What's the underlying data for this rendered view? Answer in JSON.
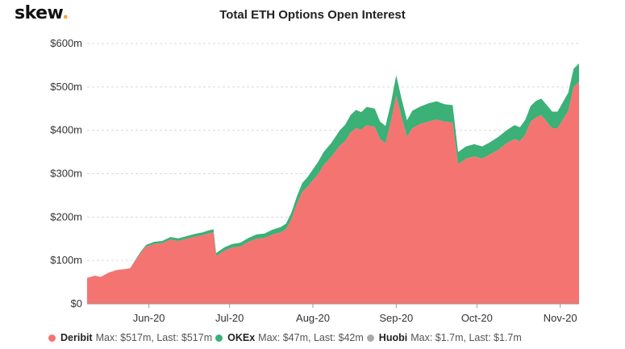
{
  "brand": {
    "name": "skew",
    "dot": "."
  },
  "chart_data": {
    "type": "area",
    "stacked": true,
    "title": "Total ETH Options Open Interest",
    "xlabel": "",
    "ylabel": "",
    "y_ticks": [
      {
        "value": 0,
        "label": "$0"
      },
      {
        "value": 100,
        "label": "$100m"
      },
      {
        "value": 200,
        "label": "$200m"
      },
      {
        "value": 300,
        "label": "$300m"
      },
      {
        "value": 400,
        "label": "$400m"
      },
      {
        "value": 500,
        "label": "$500m"
      },
      {
        "value": 600,
        "label": "$600m"
      }
    ],
    "ylim": [
      0,
      600
    ],
    "x_ticks": [
      {
        "date": "2020-06-01",
        "label": "Jun-20"
      },
      {
        "date": "2020-07-01",
        "label": "Jul-20"
      },
      {
        "date": "2020-08-01",
        "label": "Aug-20"
      },
      {
        "date": "2020-09-01",
        "label": "Sep-20"
      },
      {
        "date": "2020-10-01",
        "label": "Oct-20"
      },
      {
        "date": "2020-11-01",
        "label": "Nov-20"
      }
    ],
    "xlim": [
      "2020-05-09",
      "2020-11-08"
    ],
    "grid": "horizontal dashed",
    "legend_position": "bottom",
    "series": [
      {
        "name": "Deribit",
        "color": "#f47471",
        "stats": "Max: $517m, Last: $517m",
        "points": [
          [
            "2020-05-09",
            60
          ],
          [
            "2020-05-12",
            65
          ],
          [
            "2020-05-14",
            62
          ],
          [
            "2020-05-17",
            72
          ],
          [
            "2020-05-20",
            78
          ],
          [
            "2020-05-23",
            80
          ],
          [
            "2020-05-25",
            82
          ],
          [
            "2020-05-27",
            100
          ],
          [
            "2020-05-29",
            118
          ],
          [
            "2020-05-31",
            132
          ],
          [
            "2020-06-03",
            138
          ],
          [
            "2020-06-06",
            140
          ],
          [
            "2020-06-09",
            148
          ],
          [
            "2020-06-12",
            145
          ],
          [
            "2020-06-15",
            150
          ],
          [
            "2020-06-18",
            155
          ],
          [
            "2020-06-21",
            158
          ],
          [
            "2020-06-23",
            162
          ],
          [
            "2020-06-25",
            165
          ],
          [
            "2020-06-26",
            110
          ],
          [
            "2020-06-29",
            122
          ],
          [
            "2020-07-02",
            130
          ],
          [
            "2020-07-05",
            132
          ],
          [
            "2020-07-08",
            143
          ],
          [
            "2020-07-11",
            150
          ],
          [
            "2020-07-14",
            152
          ],
          [
            "2020-07-17",
            160
          ],
          [
            "2020-07-20",
            165
          ],
          [
            "2020-07-22",
            172
          ],
          [
            "2020-07-24",
            195
          ],
          [
            "2020-07-26",
            230
          ],
          [
            "2020-07-28",
            258
          ],
          [
            "2020-07-30",
            270
          ],
          [
            "2020-08-01",
            285
          ],
          [
            "2020-08-03",
            300
          ],
          [
            "2020-08-05",
            320
          ],
          [
            "2020-08-08",
            340
          ],
          [
            "2020-08-11",
            365
          ],
          [
            "2020-08-13",
            375
          ],
          [
            "2020-08-15",
            395
          ],
          [
            "2020-08-17",
            405
          ],
          [
            "2020-08-19",
            402
          ],
          [
            "2020-08-21",
            412
          ],
          [
            "2020-08-24",
            408
          ],
          [
            "2020-08-26",
            380
          ],
          [
            "2020-08-28",
            370
          ],
          [
            "2020-08-30",
            420
          ],
          [
            "2020-09-01",
            480
          ],
          [
            "2020-09-03",
            430
          ],
          [
            "2020-09-05",
            385
          ],
          [
            "2020-09-07",
            405
          ],
          [
            "2020-09-10",
            415
          ],
          [
            "2020-09-13",
            420
          ],
          [
            "2020-09-16",
            425
          ],
          [
            "2020-09-19",
            420
          ],
          [
            "2020-09-22",
            418
          ],
          [
            "2020-09-24",
            322
          ],
          [
            "2020-09-27",
            335
          ],
          [
            "2020-09-30",
            340
          ],
          [
            "2020-10-03",
            335
          ],
          [
            "2020-10-06",
            345
          ],
          [
            "2020-10-09",
            355
          ],
          [
            "2020-10-12",
            370
          ],
          [
            "2020-10-15",
            380
          ],
          [
            "2020-10-17",
            375
          ],
          [
            "2020-10-19",
            390
          ],
          [
            "2020-10-21",
            420
          ],
          [
            "2020-10-23",
            430
          ],
          [
            "2020-10-25",
            435
          ],
          [
            "2020-10-27",
            420
          ],
          [
            "2020-10-29",
            405
          ],
          [
            "2020-10-31",
            405
          ],
          [
            "2020-11-02",
            425
          ],
          [
            "2020-11-04",
            445
          ],
          [
            "2020-11-06",
            500
          ],
          [
            "2020-11-08",
            512
          ]
        ]
      },
      {
        "name": "OKEx",
        "color": "#3bb077",
        "stats": "Max: $47m, Last: $42m",
        "points": [
          [
            "2020-05-09",
            0
          ],
          [
            "2020-05-12",
            0
          ],
          [
            "2020-05-14",
            0
          ],
          [
            "2020-05-17",
            0
          ],
          [
            "2020-05-20",
            0
          ],
          [
            "2020-05-23",
            0
          ],
          [
            "2020-05-25",
            0
          ],
          [
            "2020-05-27",
            2
          ],
          [
            "2020-05-29",
            3
          ],
          [
            "2020-05-31",
            4
          ],
          [
            "2020-06-03",
            5
          ],
          [
            "2020-06-06",
            5
          ],
          [
            "2020-06-09",
            6
          ],
          [
            "2020-06-12",
            6
          ],
          [
            "2020-06-15",
            6
          ],
          [
            "2020-06-18",
            6
          ],
          [
            "2020-06-21",
            7
          ],
          [
            "2020-06-23",
            7
          ],
          [
            "2020-06-25",
            7
          ],
          [
            "2020-06-26",
            7
          ],
          [
            "2020-06-29",
            8
          ],
          [
            "2020-07-02",
            8
          ],
          [
            "2020-07-05",
            9
          ],
          [
            "2020-07-08",
            9
          ],
          [
            "2020-07-11",
            10
          ],
          [
            "2020-07-14",
            10
          ],
          [
            "2020-07-17",
            11
          ],
          [
            "2020-07-20",
            12
          ],
          [
            "2020-07-22",
            13
          ],
          [
            "2020-07-24",
            15
          ],
          [
            "2020-07-26",
            17
          ],
          [
            "2020-07-28",
            20
          ],
          [
            "2020-07-30",
            22
          ],
          [
            "2020-08-01",
            25
          ],
          [
            "2020-08-03",
            28
          ],
          [
            "2020-08-05",
            30
          ],
          [
            "2020-08-08",
            32
          ],
          [
            "2020-08-11",
            35
          ],
          [
            "2020-08-13",
            38
          ],
          [
            "2020-08-15",
            40
          ],
          [
            "2020-08-17",
            42
          ],
          [
            "2020-08-19",
            40
          ],
          [
            "2020-08-21",
            42
          ],
          [
            "2020-08-24",
            42
          ],
          [
            "2020-08-26",
            40
          ],
          [
            "2020-08-28",
            40
          ],
          [
            "2020-08-30",
            42
          ],
          [
            "2020-09-01",
            47
          ],
          [
            "2020-09-03",
            42
          ],
          [
            "2020-09-05",
            38
          ],
          [
            "2020-09-07",
            40
          ],
          [
            "2020-09-10",
            40
          ],
          [
            "2020-09-13",
            42
          ],
          [
            "2020-09-16",
            42
          ],
          [
            "2020-09-19",
            40
          ],
          [
            "2020-09-22",
            40
          ],
          [
            "2020-09-24",
            28
          ],
          [
            "2020-09-27",
            28
          ],
          [
            "2020-09-30",
            28
          ],
          [
            "2020-10-03",
            28
          ],
          [
            "2020-10-06",
            28
          ],
          [
            "2020-10-09",
            30
          ],
          [
            "2020-10-12",
            30
          ],
          [
            "2020-10-15",
            32
          ],
          [
            "2020-10-17",
            32
          ],
          [
            "2020-10-19",
            34
          ],
          [
            "2020-10-21",
            36
          ],
          [
            "2020-10-23",
            38
          ],
          [
            "2020-10-25",
            38
          ],
          [
            "2020-10-27",
            38
          ],
          [
            "2020-10-29",
            38
          ],
          [
            "2020-10-31",
            38
          ],
          [
            "2020-11-02",
            40
          ],
          [
            "2020-11-04",
            42
          ],
          [
            "2020-11-06",
            42
          ],
          [
            "2020-11-08",
            42
          ]
        ]
      },
      {
        "name": "Huobi",
        "color": "#aaaaaa",
        "stats": "Max: $1.7m, Last: $1.7m",
        "points": []
      }
    ]
  }
}
